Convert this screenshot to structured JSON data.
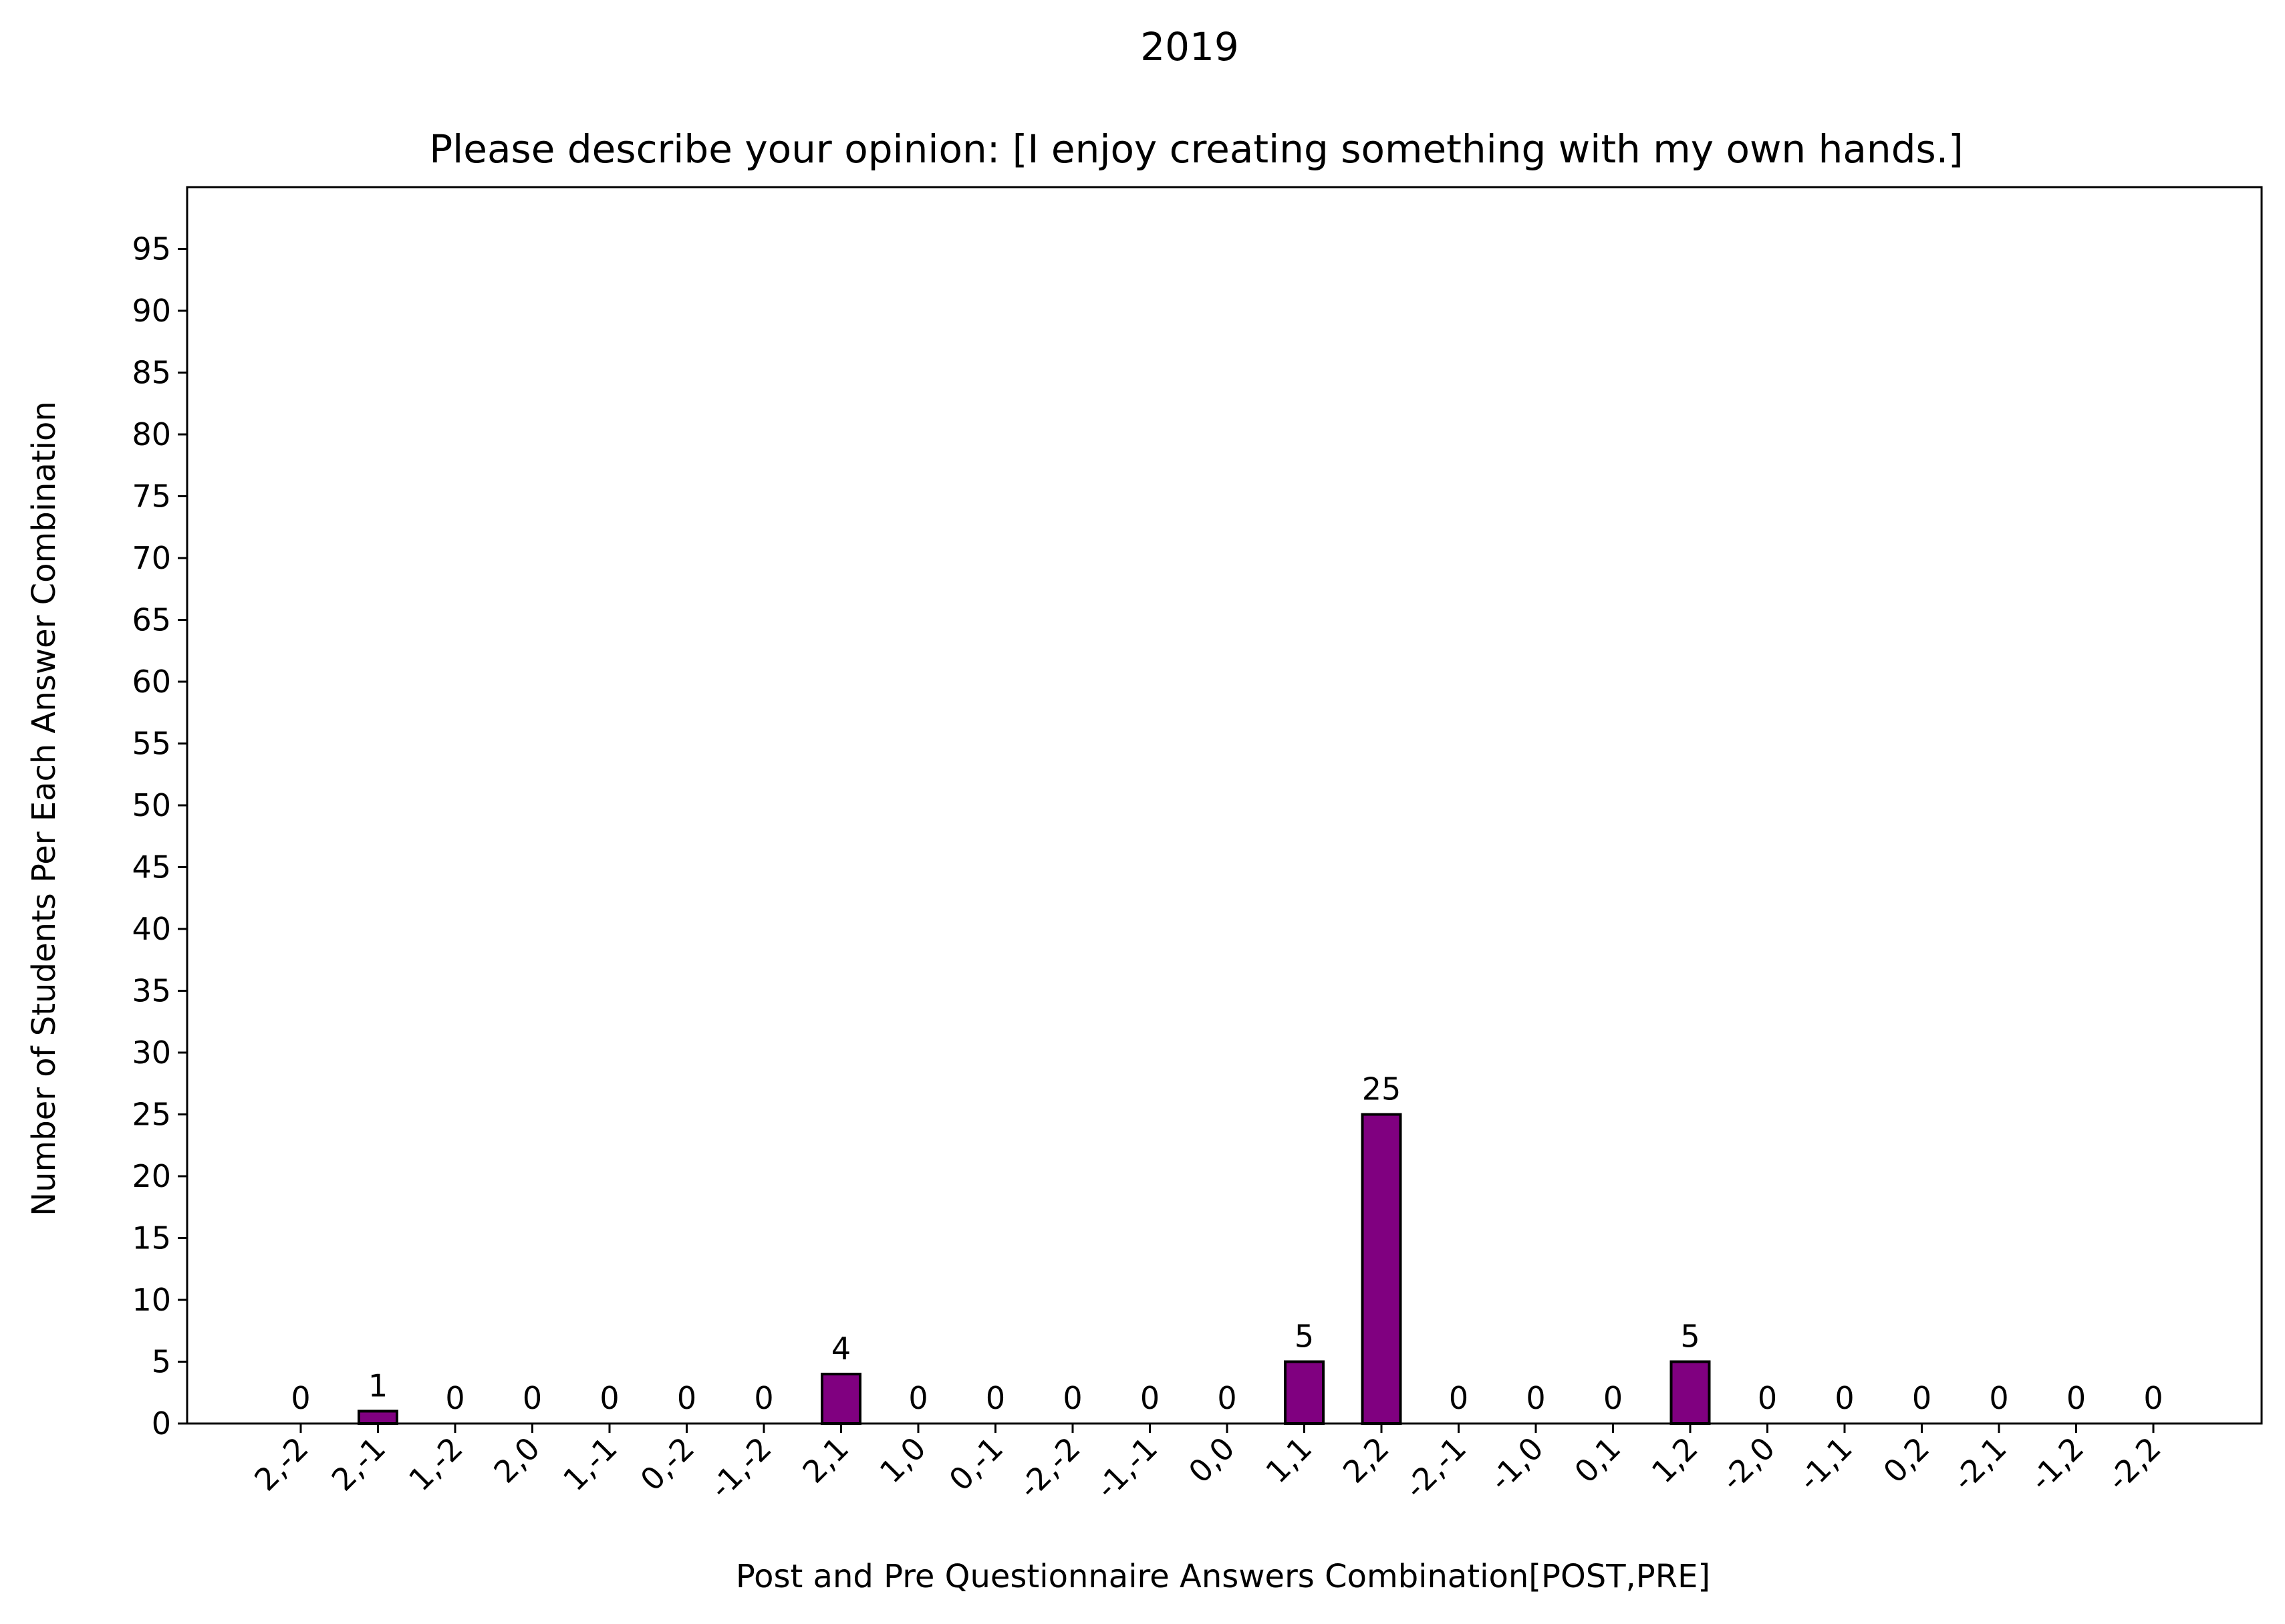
{
  "chart_data": {
    "type": "bar",
    "suptitle": "2019",
    "title": "Please describe your opinion: [I enjoy creating something with my own hands.]",
    "xlabel": "Post and Pre Questionnaire Answers Combination[POST,PRE]",
    "ylabel": "Number of Students Per Each Answer Combination",
    "categories": [
      "2,-2",
      "2,-1",
      "1,-2",
      "2,0",
      "1,-1",
      "0,-2",
      "-1,-2",
      "2,1",
      "1,0",
      "0,-1",
      "-2,-2",
      "-1,-1",
      "0,0",
      "1,1",
      "2,2",
      "-2,-1",
      "-1,0",
      "0,1",
      "1,2",
      "-2,0",
      "-1,1",
      "0,2",
      "-2,1",
      "-1,2",
      "-2,2"
    ],
    "values": [
      0,
      1,
      0,
      0,
      0,
      0,
      0,
      4,
      0,
      0,
      0,
      0,
      0,
      5,
      25,
      0,
      0,
      0,
      5,
      0,
      0,
      0,
      0,
      0,
      0
    ],
    "data_labels": [
      "0",
      "1",
      "0",
      "0",
      "0",
      "0",
      "0",
      "4",
      "0",
      "0",
      "0",
      "0",
      "0",
      "5",
      "25",
      "0",
      "0",
      "0",
      "5",
      "0",
      "0",
      "0",
      "0",
      "0",
      "0"
    ],
    "yticks": [
      "0",
      "5",
      "10",
      "15",
      "20",
      "25",
      "30",
      "35",
      "40",
      "45",
      "50",
      "55",
      "60",
      "65",
      "70",
      "75",
      "80",
      "85",
      "90",
      "95"
    ],
    "ylim": [
      0,
      100
    ],
    "grid": false,
    "legend": "none",
    "bar_color": "#800080",
    "bar_edge_color": "#000000"
  }
}
